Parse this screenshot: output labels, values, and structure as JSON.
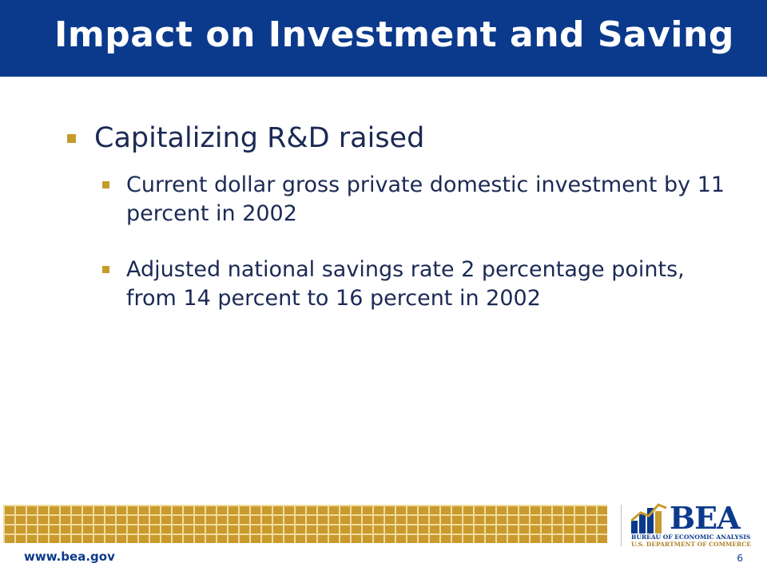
{
  "slide": {
    "title": "Impact on Investment and Saving",
    "bullets": [
      {
        "text": "Capitalizing R&D raised",
        "sub": [
          "Current dollar gross private domestic investment by 11 percent in 2002",
          "Adjusted national savings rate 2 percentage points, from 14 percent to 16 percent in 2002"
        ]
      }
    ]
  },
  "footer": {
    "url": "www.bea.gov",
    "page_number": "6",
    "logo": {
      "name": "BEA",
      "line1": "BUREAU OF ECONOMIC ANALYSIS",
      "line2": "U.S. DEPARTMENT OF COMMERCE"
    }
  },
  "colors": {
    "title_bar": "#0b3a8c",
    "text": "#1b2a55",
    "bullet_marker": "#c59b2a",
    "footer_grid": "#c99a2e"
  }
}
